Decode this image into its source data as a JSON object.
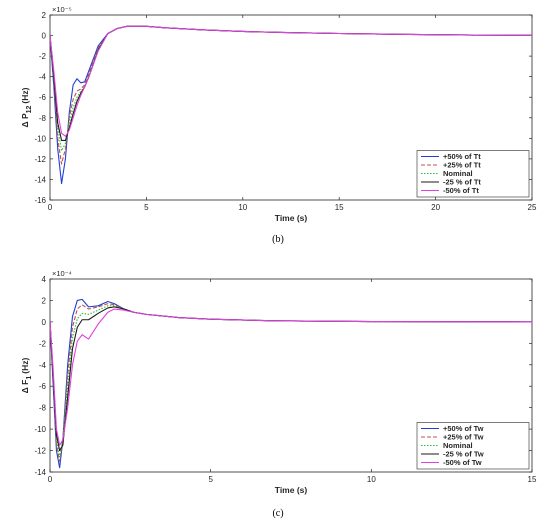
{
  "chart_data": [
    {
      "type": "line",
      "caption": "(b)",
      "exponent_label": "×10⁻⁵",
      "ylabel_main": "Δ P",
      "ylabel_sub": "12",
      "ylabel_unit": "(Hz)",
      "xlabel": "Time (s)",
      "xlim": [
        0,
        25
      ],
      "ylim": [
        -16,
        2
      ],
      "x_ticks": [
        0,
        5,
        10,
        15,
        20,
        25
      ],
      "y_ticks": [
        2,
        0,
        -2,
        -4,
        -6,
        -8,
        -10,
        -12,
        -14,
        -16
      ],
      "grid": false,
      "legend_position": "bottom-right",
      "series": [
        {
          "name": "+50% of Tt",
          "color": "#1f3fd6",
          "dash": "solid",
          "x": [
            0,
            0.2,
            0.4,
            0.6,
            0.8,
            1.0,
            1.2,
            1.4,
            1.6,
            1.8,
            2.0,
            2.5,
            3.0,
            3.5,
            4.0,
            5.0,
            6.0,
            8.0,
            10.0,
            12.0,
            15.0,
            18.0,
            20.0,
            22.0,
            25.0
          ],
          "y": [
            0,
            -5,
            -11,
            -14.4,
            -12,
            -7.5,
            -4.8,
            -4.2,
            -4.6,
            -4.5,
            -3.5,
            -1.0,
            0.2,
            0.7,
            0.9,
            0.9,
            0.75,
            0.55,
            0.4,
            0.3,
            0.2,
            0.12,
            0.08,
            0.05,
            0.02
          ]
        },
        {
          "name": "+25% of Tt",
          "color": "#c0504d",
          "dash": "4,2",
          "x": [
            0,
            0.2,
            0.4,
            0.6,
            0.8,
            1.0,
            1.2,
            1.4,
            1.6,
            1.8,
            2.0,
            2.5,
            3.0,
            3.5,
            4.0,
            5.0,
            6.0,
            8.0,
            10.0,
            12.0,
            15.0,
            18.0,
            20.0,
            22.0,
            25.0
          ],
          "y": [
            0,
            -4.5,
            -10,
            -12.5,
            -11,
            -8,
            -6.2,
            -5.4,
            -5.2,
            -4.8,
            -3.8,
            -1.2,
            0.2,
            0.7,
            0.9,
            0.9,
            0.75,
            0.55,
            0.4,
            0.3,
            0.2,
            0.12,
            0.08,
            0.05,
            0.02
          ]
        },
        {
          "name": "Nominal",
          "color": "#2bbf2b",
          "dash": "1.5,1.5",
          "x": [
            0,
            0.2,
            0.4,
            0.6,
            0.8,
            1.0,
            1.2,
            1.4,
            1.6,
            1.8,
            2.0,
            2.5,
            3.0,
            3.5,
            4.0,
            5.0,
            6.0,
            8.0,
            10.0,
            12.0,
            15.0,
            18.0,
            20.0,
            22.0,
            25.0
          ],
          "y": [
            0,
            -4.2,
            -9,
            -11.2,
            -10.5,
            -8.5,
            -7,
            -6,
            -5.4,
            -5,
            -4,
            -1.3,
            0.2,
            0.7,
            0.9,
            0.9,
            0.75,
            0.55,
            0.4,
            0.3,
            0.2,
            0.12,
            0.08,
            0.05,
            0.02
          ]
        },
        {
          "name": "-25 % of Tt",
          "color": "#1a1a1a",
          "dash": "solid",
          "x": [
            0,
            0.2,
            0.4,
            0.6,
            0.8,
            1.0,
            1.2,
            1.4,
            1.6,
            1.8,
            2.0,
            2.5,
            3.0,
            3.5,
            4.0,
            5.0,
            6.0,
            8.0,
            10.0,
            12.0,
            15.0,
            18.0,
            20.0,
            22.0,
            25.0
          ],
          "y": [
            0,
            -4,
            -8.5,
            -10.2,
            -10.2,
            -9,
            -7.6,
            -6.4,
            -5.6,
            -5,
            -4.1,
            -1.4,
            0.2,
            0.7,
            0.9,
            0.9,
            0.75,
            0.55,
            0.4,
            0.3,
            0.2,
            0.12,
            0.08,
            0.05,
            0.02
          ]
        },
        {
          "name": "-50% of Tt",
          "color": "#e040e0",
          "dash": "solid",
          "x": [
            0,
            0.2,
            0.4,
            0.6,
            0.8,
            1.0,
            1.2,
            1.4,
            1.6,
            1.8,
            2.0,
            2.5,
            3.0,
            3.5,
            4.0,
            5.0,
            6.0,
            8.0,
            10.0,
            12.0,
            15.0,
            18.0,
            20.0,
            22.0,
            25.0
          ],
          "y": [
            0,
            -3.5,
            -7.5,
            -9.5,
            -9.8,
            -9.2,
            -8,
            -6.8,
            -5.8,
            -5,
            -4.1,
            -1.5,
            0.2,
            0.7,
            0.9,
            0.9,
            0.75,
            0.55,
            0.4,
            0.3,
            0.2,
            0.12,
            0.08,
            0.05,
            0.02
          ]
        }
      ]
    },
    {
      "type": "line",
      "caption": "(c)",
      "exponent_label": "×10⁻⁴",
      "ylabel_main": "Δ F",
      "ylabel_sub": "1",
      "ylabel_unit": "(Hz)",
      "xlabel": "Time (s)",
      "xlim": [
        0,
        15
      ],
      "ylim": [
        -14,
        4
      ],
      "x_ticks": [
        0,
        5,
        10,
        15
      ],
      "y_ticks": [
        4,
        2,
        0,
        -2,
        -4,
        -6,
        -8,
        -10,
        -12,
        -14
      ],
      "grid": false,
      "legend_position": "bottom-right",
      "series": [
        {
          "name": "+50% of Tw",
          "color": "#1f3fd6",
          "dash": "solid",
          "x": [
            0,
            0.1,
            0.2,
            0.3,
            0.4,
            0.55,
            0.7,
            0.85,
            1.0,
            1.2,
            1.5,
            1.8,
            2.0,
            2.3,
            2.6,
            3.0,
            4.0,
            5.0,
            7.0,
            10.0,
            15.0
          ],
          "y": [
            0,
            -6,
            -12,
            -13.6,
            -11,
            -4,
            0.5,
            2.0,
            2.1,
            1.4,
            1.5,
            1.9,
            1.7,
            1.2,
            0.9,
            0.7,
            0.4,
            0.25,
            0.1,
            0.03,
            0
          ]
        },
        {
          "name": "+25% of Tw",
          "color": "#c0504d",
          "dash": "4,2",
          "x": [
            0,
            0.1,
            0.2,
            0.3,
            0.4,
            0.55,
            0.7,
            0.85,
            1.0,
            1.2,
            1.5,
            1.8,
            2.0,
            2.3,
            2.6,
            3.0,
            4.0,
            5.0,
            7.0,
            10.0,
            15.0
          ],
          "y": [
            0,
            -5.5,
            -11.5,
            -13,
            -11,
            -5,
            -0.5,
            1.2,
            1.6,
            1.2,
            1.4,
            1.7,
            1.6,
            1.2,
            0.9,
            0.7,
            0.4,
            0.25,
            0.1,
            0.03,
            0
          ]
        },
        {
          "name": "Nominal",
          "color": "#2bbf2b",
          "dash": "1.5,1.5",
          "x": [
            0,
            0.1,
            0.2,
            0.3,
            0.4,
            0.55,
            0.7,
            0.85,
            1.0,
            1.2,
            1.5,
            1.8,
            2.0,
            2.3,
            2.6,
            3.0,
            4.0,
            5.0,
            7.0,
            10.0,
            15.0
          ],
          "y": [
            0,
            -5,
            -11,
            -12.6,
            -11,
            -6,
            -1.5,
            0.3,
            0.8,
            0.7,
            1.1,
            1.5,
            1.5,
            1.2,
            0.9,
            0.7,
            0.4,
            0.25,
            0.1,
            0.03,
            0
          ]
        },
        {
          "name": "-25 % of Tw",
          "color": "#1a1a1a",
          "dash": "solid",
          "x": [
            0,
            0.1,
            0.2,
            0.3,
            0.4,
            0.55,
            0.7,
            0.85,
            1.0,
            1.2,
            1.5,
            1.8,
            2.0,
            2.3,
            2.6,
            3.0,
            4.0,
            5.0,
            7.0,
            10.0,
            15.0
          ],
          "y": [
            0,
            -5,
            -10.5,
            -12,
            -11.5,
            -7,
            -2.5,
            -0.5,
            0.2,
            0.2,
            0.8,
            1.3,
            1.4,
            1.2,
            0.9,
            0.7,
            0.4,
            0.25,
            0.1,
            0.03,
            0
          ]
        },
        {
          "name": "-50% of Tw",
          "color": "#e040e0",
          "dash": "solid",
          "x": [
            0,
            0.1,
            0.2,
            0.3,
            0.4,
            0.55,
            0.7,
            0.85,
            1.0,
            1.2,
            1.5,
            1.8,
            2.0,
            2.3,
            2.6,
            3.0,
            4.0,
            5.0,
            7.0,
            10.0,
            15.0
          ],
          "y": [
            0,
            -4.5,
            -10,
            -11.5,
            -11,
            -8,
            -4,
            -1.8,
            -1.2,
            -1.6,
            -0.2,
            0.9,
            1.2,
            1.1,
            0.9,
            0.7,
            0.4,
            0.25,
            0.1,
            0.03,
            0
          ]
        }
      ]
    }
  ]
}
